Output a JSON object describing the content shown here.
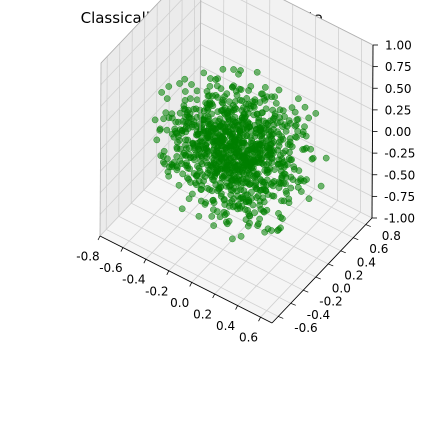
{
  "chart_data": {
    "type": "scatter",
    "title": "Classically Corrected Qubit Data",
    "xlabel": "",
    "ylabel": "",
    "zlabel": "",
    "projection": "3d",
    "xlim": [
      -0.8,
      0.7
    ],
    "ylim": [
      -0.7,
      0.9
    ],
    "zlim": [
      -1.0,
      1.0
    ],
    "x_ticks": [
      "-0.8",
      "-0.6",
      "-0.4",
      "-0.2",
      "0.0",
      "0.2",
      "0.4",
      "0.6"
    ],
    "y_ticks": [
      "-0.6",
      "-0.4",
      "-0.2",
      "0.0",
      "0.2",
      "0.4",
      "0.6",
      "0.8"
    ],
    "z_ticks": [
      "1.00",
      "0.75",
      "0.50",
      "0.25",
      "0.00",
      "-0.25",
      "-0.50",
      "-0.75",
      "-1.00"
    ],
    "grid": true,
    "marker_color": "#008000",
    "marker_alpha": 0.55,
    "n_points": 1000,
    "distribution": "random cloud centered near the origin"
  }
}
